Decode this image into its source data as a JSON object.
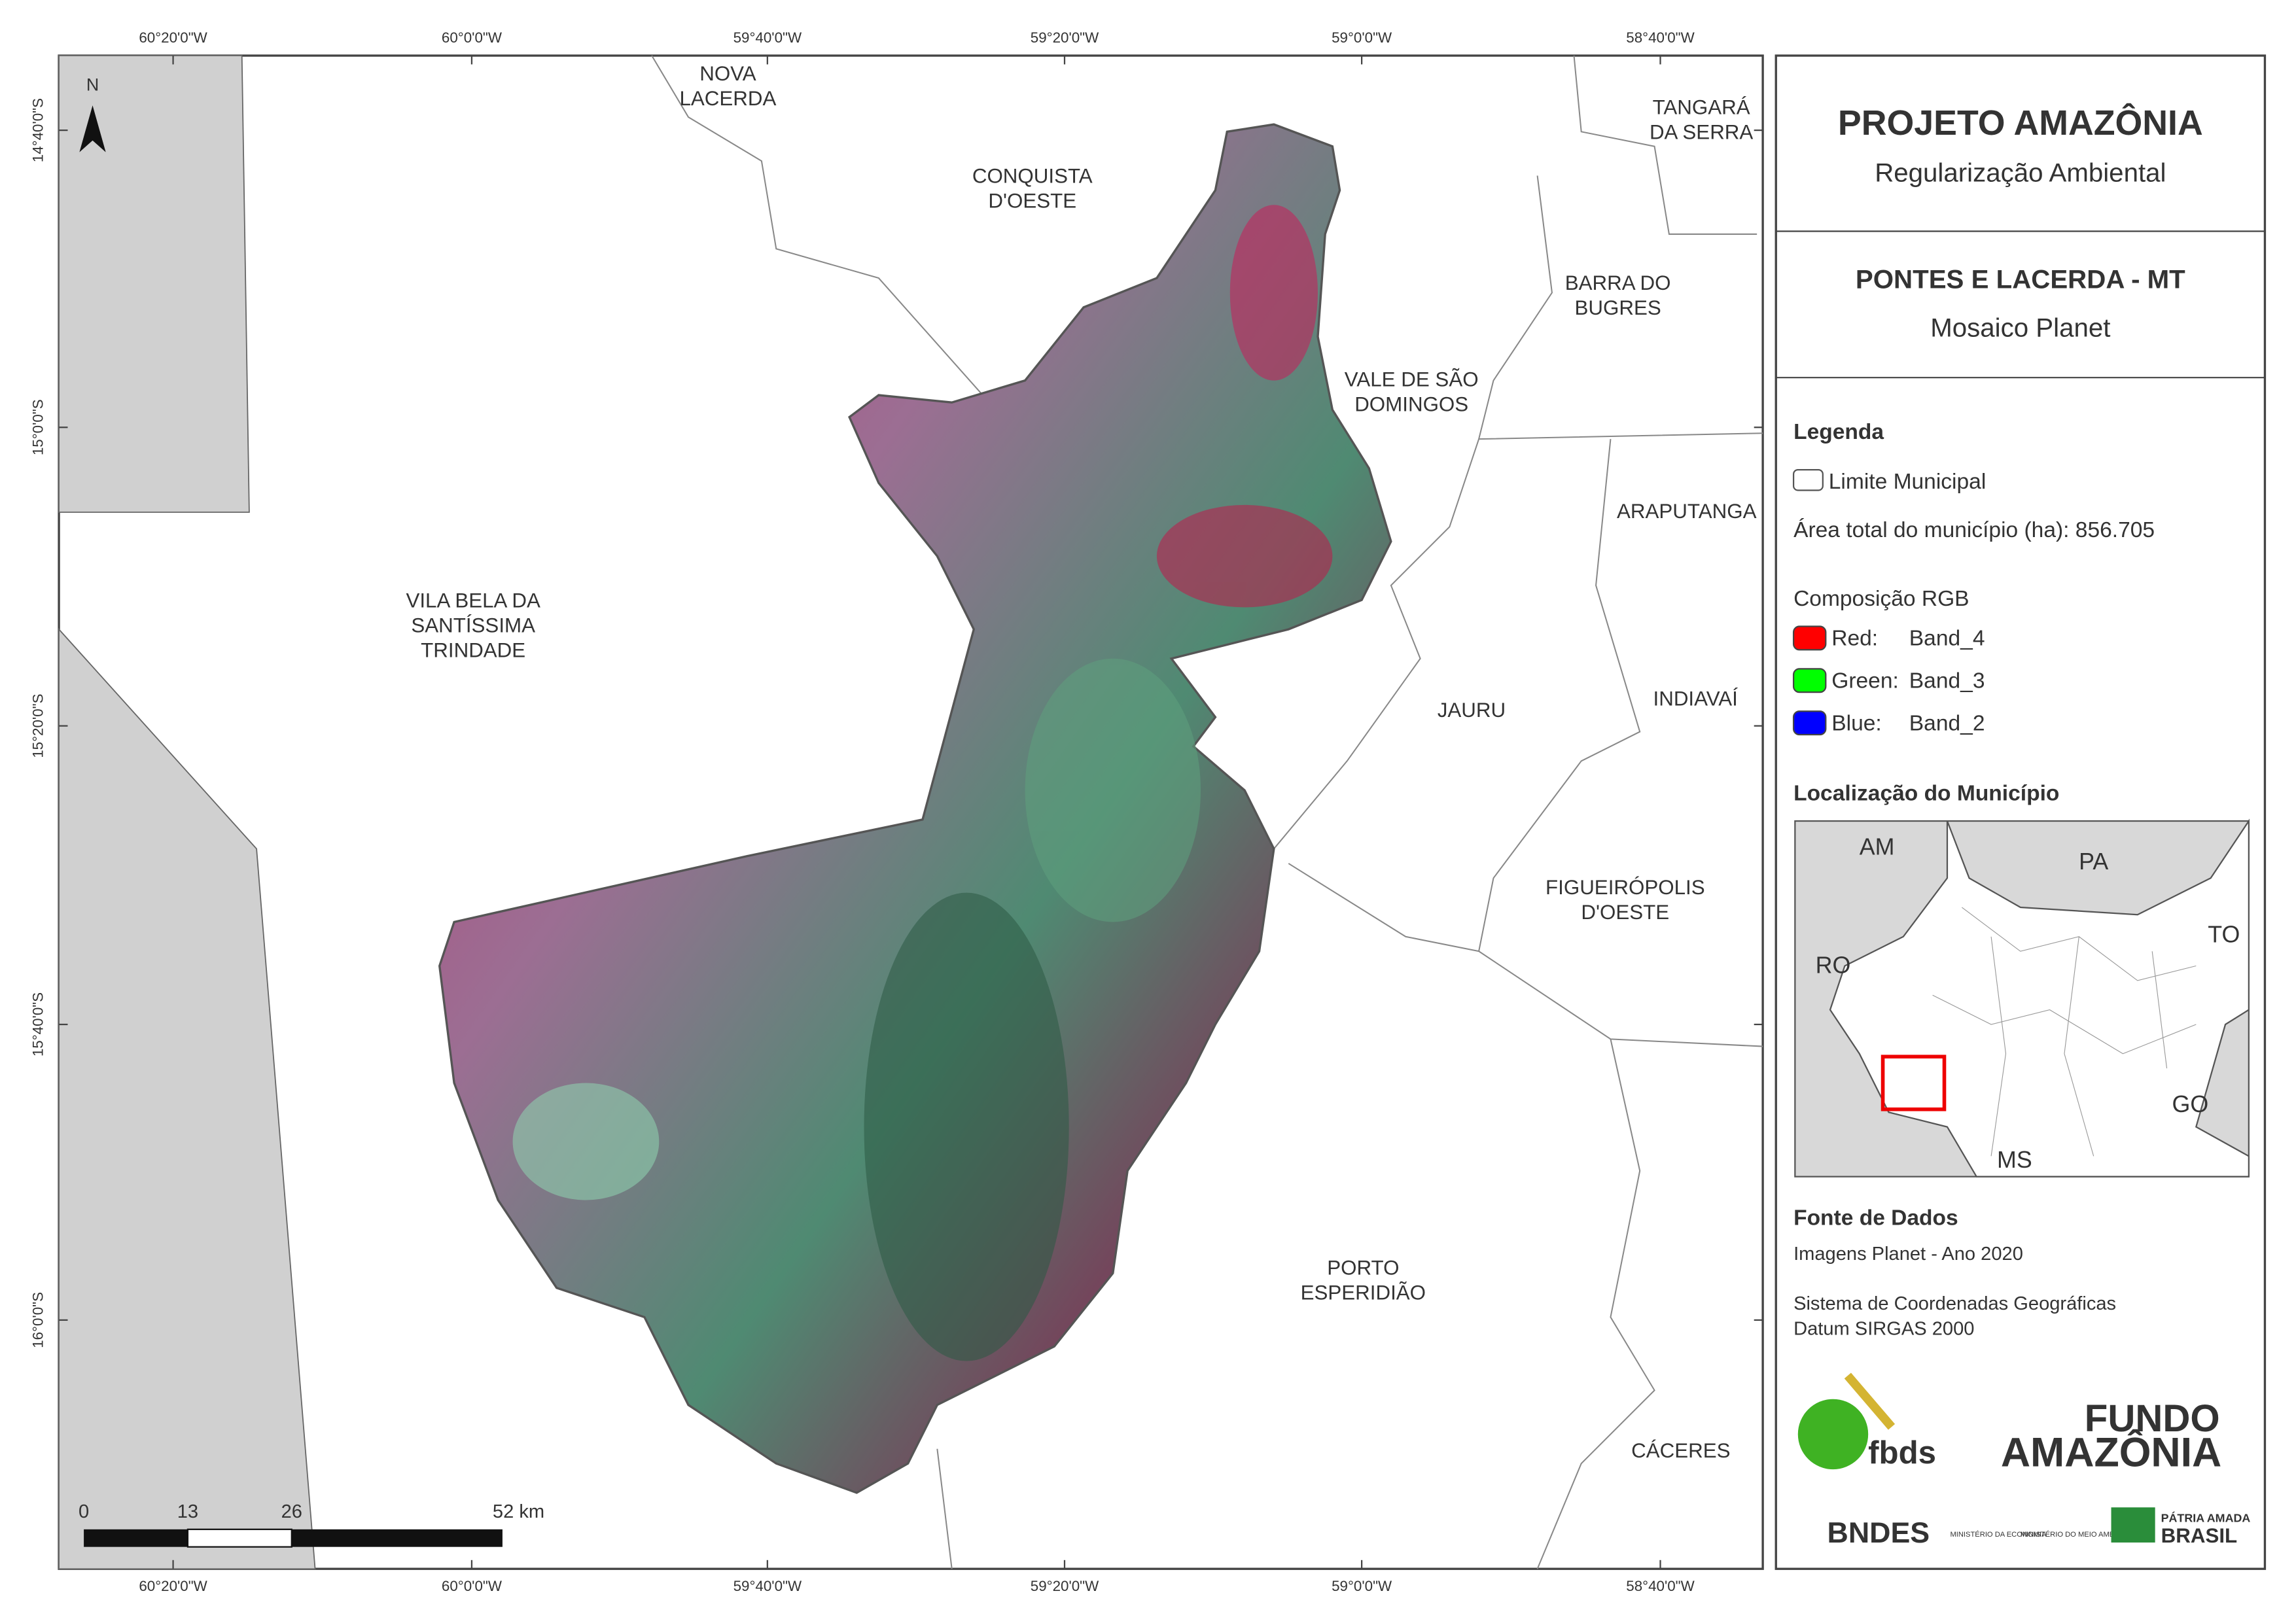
{
  "header": {
    "title": "PROJETO AMAZÔNIA",
    "subtitle": "Regularização Ambiental",
    "municipality": "PONTES E LACERDA - MT",
    "product": "Mosaico Planet"
  },
  "legend": {
    "title": "Legenda",
    "boundary": "Limite Municipal",
    "area": "Área total do município (ha): 856.705",
    "rgb_title": "Composição RGB",
    "bands": [
      {
        "channel": "Red:",
        "band": "Band_4",
        "color": "#ff0000"
      },
      {
        "channel": "Green:",
        "band": "Band_3",
        "color": "#00ff00"
      },
      {
        "channel": "Blue:",
        "band": "Band_2",
        "color": "#0000ff"
      }
    ]
  },
  "location": {
    "title": "Localização do Município",
    "states": [
      "AM",
      "PA",
      "RO",
      "TO",
      "GO",
      "MS"
    ]
  },
  "sources": {
    "title": "Fonte de Dados",
    "lines": [
      "Imagens Planet - Ano 2020",
      "Sistema de Coordenadas Geográficas",
      "Datum SIRGAS 2000"
    ]
  },
  "logos": {
    "fbds": "fbds",
    "fundo": [
      "FUNDO",
      "AMAZÔNIA"
    ],
    "bndes": "BNDES",
    "ministries": [
      "MINISTÉRIO DA ECONOMIA",
      "MINISTÉRIO DO MEIO AMBIENTE"
    ],
    "patria": [
      "PÁTRIA AMADA",
      "BRASIL"
    ]
  },
  "map": {
    "north": "N",
    "x_ticks": [
      "60°20'0\"W",
      "60°0'0\"W",
      "59°40'0\"W",
      "59°20'0\"W",
      "59°0'0\"W",
      "58°40'0\"W"
    ],
    "y_ticks": [
      "14°40'0\"S",
      "15°0'0\"S",
      "15°20'0\"S",
      "15°40'0\"S",
      "16°0'0\"S"
    ],
    "places": [
      [
        "NOVA",
        "LACERDA"
      ],
      [
        "CONQUISTA",
        "D'OESTE"
      ],
      [
        "TANGARÁ",
        "DA SERRA"
      ],
      [
        "BARRA DO",
        "BUGRES"
      ],
      [
        "VALE DE SÃO",
        "DOMINGOS"
      ],
      [
        "ARAPUTANGA"
      ],
      [
        "VILA BELA DA",
        "SANTÍSSIMA",
        "TRINDADE"
      ],
      [
        "JAURU"
      ],
      [
        "INDIAVAÍ"
      ],
      [
        "FIGUEIRÓPOLIS",
        "D'OESTE"
      ],
      [
        "PORTO",
        "ESPERIDIÃO"
      ],
      [
        "CÁCERES"
      ]
    ],
    "scale": [
      "0",
      "13",
      "26",
      "52 km"
    ]
  }
}
